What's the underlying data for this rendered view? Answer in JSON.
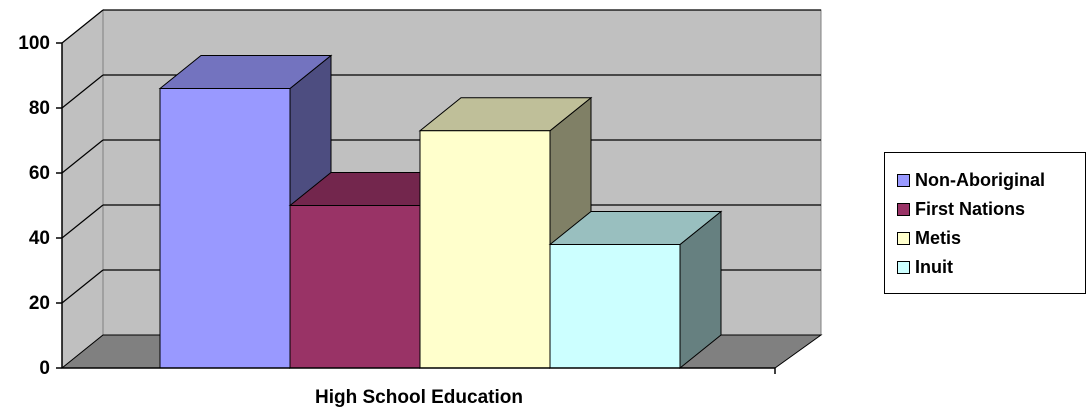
{
  "chart_data": {
    "type": "bar",
    "style": "3d-clustered",
    "categories": [
      "High School Education"
    ],
    "series": [
      {
        "name": "Non-Aboriginal",
        "values": [
          86
        ],
        "color": "#9999FF"
      },
      {
        "name": "First Nations",
        "values": [
          50
        ],
        "color": "#993366"
      },
      {
        "name": "Metis",
        "values": [
          73
        ],
        "color": "#FFFFCC"
      },
      {
        "name": "Inuit",
        "values": [
          38
        ],
        "color": "#CCFFFF"
      }
    ],
    "title": "",
    "xlabel": "",
    "ylabel": "",
    "ylim": [
      0,
      100
    ],
    "yticks": [
      0,
      20,
      40,
      60,
      80,
      100
    ],
    "ytick_labels": [
      "0",
      "20",
      "40",
      "60",
      "80",
      "100"
    ],
    "grid": true,
    "wall_color": "#C0C0C0",
    "floor_color": "#808080",
    "legend_position": "right"
  }
}
